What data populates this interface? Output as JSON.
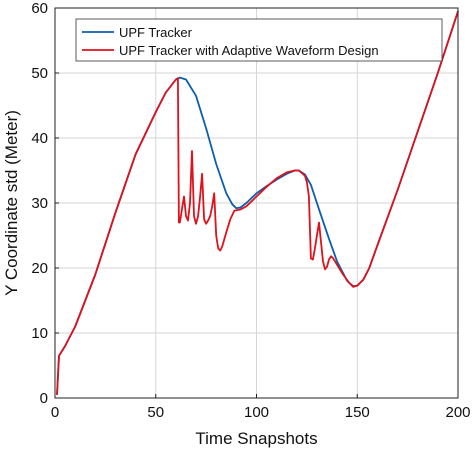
{
  "chart_data": {
    "type": "line",
    "title": "",
    "xlabel": "Time Snapshots",
    "ylabel": "Y Coordinate std (Meter)",
    "xlim": [
      0,
      200
    ],
    "ylim": [
      0,
      60
    ],
    "x_ticks": [
      "0",
      "50",
      "100",
      "150",
      "200"
    ],
    "y_ticks": [
      "0",
      "10",
      "20",
      "30",
      "40",
      "50",
      "60"
    ],
    "grid": true,
    "legend_position": "top-left",
    "series": [
      {
        "name": "UPF Tracker",
        "color": "#0b5fae",
        "points": [
          [
            1,
            0.5
          ],
          [
            2,
            6.5
          ],
          [
            5,
            8
          ],
          [
            10,
            11
          ],
          [
            20,
            19
          ],
          [
            30,
            28.5
          ],
          [
            40,
            37.5
          ],
          [
            50,
            44
          ],
          [
            55,
            47
          ],
          [
            60,
            49
          ],
          [
            62,
            49.3
          ],
          [
            65,
            49
          ],
          [
            70,
            46.5
          ],
          [
            75,
            41.5
          ],
          [
            80,
            36
          ],
          [
            85,
            31.5
          ],
          [
            88,
            29.8
          ],
          [
            90,
            29.2
          ],
          [
            92,
            29.3
          ],
          [
            95,
            30
          ],
          [
            100,
            31.5
          ],
          [
            105,
            32.6
          ],
          [
            110,
            33.6
          ],
          [
            115,
            34.5
          ],
          [
            119,
            35
          ],
          [
            121,
            35
          ],
          [
            124,
            34.4
          ],
          [
            127,
            32.8
          ],
          [
            130,
            30
          ],
          [
            133,
            27.2
          ],
          [
            136,
            24.5
          ],
          [
            140,
            21
          ],
          [
            145,
            18
          ],
          [
            148,
            17.2
          ],
          [
            150,
            17.3
          ],
          [
            153,
            18.2
          ],
          [
            156,
            20
          ],
          [
            160,
            23.5
          ],
          [
            170,
            32
          ],
          [
            180,
            41
          ],
          [
            190,
            50
          ],
          [
            200,
            59.5
          ]
        ]
      },
      {
        "name": "UPF Tracker with Adaptive Waveform Design",
        "color": "#e0111b",
        "points": [
          [
            1,
            0.5
          ],
          [
            2,
            6.5
          ],
          [
            5,
            8
          ],
          [
            10,
            11
          ],
          [
            20,
            19
          ],
          [
            30,
            28.5
          ],
          [
            40,
            37.5
          ],
          [
            50,
            44
          ],
          [
            55,
            47
          ],
          [
            60,
            49
          ],
          [
            61,
            49.2
          ],
          [
            61.5,
            27
          ],
          [
            62,
            27
          ],
          [
            63,
            29
          ],
          [
            64,
            31
          ],
          [
            65,
            28
          ],
          [
            66,
            27.3
          ],
          [
            67,
            30
          ],
          [
            68,
            38
          ],
          [
            69,
            28
          ],
          [
            70,
            26.8
          ],
          [
            71,
            28
          ],
          [
            72,
            31
          ],
          [
            73,
            34.5
          ],
          [
            74,
            27.5
          ],
          [
            75,
            26.8
          ],
          [
            76,
            27.3
          ],
          [
            77,
            28
          ],
          [
            78,
            29.5
          ],
          [
            79,
            31.5
          ],
          [
            80,
            25
          ],
          [
            81,
            23
          ],
          [
            82,
            22.7
          ],
          [
            83,
            23.3
          ],
          [
            85,
            25.5
          ],
          [
            87,
            27.5
          ],
          [
            89,
            28.8
          ],
          [
            92,
            29
          ],
          [
            95,
            29.5
          ],
          [
            100,
            31
          ],
          [
            105,
            32.5
          ],
          [
            110,
            33.8
          ],
          [
            115,
            34.7
          ],
          [
            119,
            35
          ],
          [
            121,
            35
          ],
          [
            124,
            34.2
          ],
          [
            125,
            33.2
          ],
          [
            126,
            31
          ],
          [
            127,
            21.5
          ],
          [
            128,
            21.3
          ],
          [
            129,
            23
          ],
          [
            130,
            25
          ],
          [
            131,
            27
          ],
          [
            132,
            24
          ],
          [
            133,
            21
          ],
          [
            134,
            19.8
          ],
          [
            135,
            20.2
          ],
          [
            136,
            21.3
          ],
          [
            137,
            21.8
          ],
          [
            138,
            21.5
          ],
          [
            140,
            20.5
          ],
          [
            143,
            19
          ],
          [
            146,
            17.7
          ],
          [
            148,
            17.1
          ],
          [
            150,
            17.3
          ],
          [
            153,
            18.2
          ],
          [
            156,
            20
          ],
          [
            160,
            23.5
          ],
          [
            170,
            32
          ],
          [
            180,
            41
          ],
          [
            190,
            50
          ],
          [
            200,
            59.5
          ]
        ]
      }
    ]
  }
}
